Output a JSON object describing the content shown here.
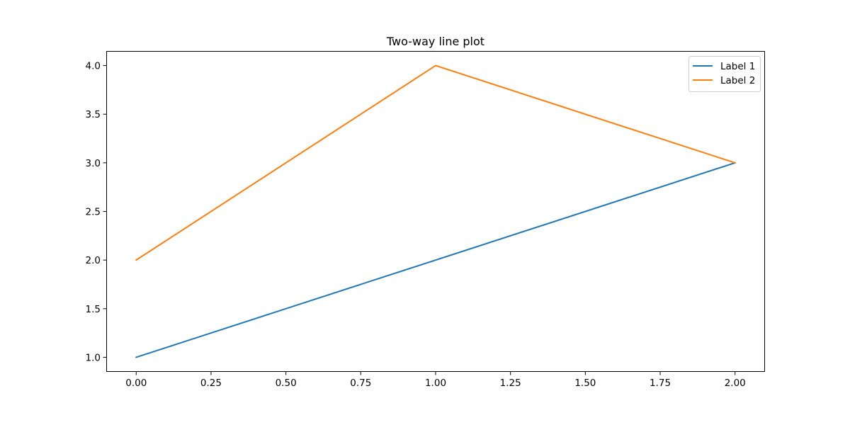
{
  "chart_data": {
    "type": "line",
    "title": "Two-way line plot",
    "xlabel": "",
    "ylabel": "",
    "xlim": [
      -0.1,
      2.1
    ],
    "ylim": [
      0.85,
      4.15
    ],
    "xticks": [
      0.0,
      0.25,
      0.5,
      0.75,
      1.0,
      1.25,
      1.5,
      1.75,
      2.0
    ],
    "xtick_labels": [
      "0.00",
      "0.25",
      "0.50",
      "0.75",
      "1.00",
      "1.25",
      "1.50",
      "1.75",
      "2.00"
    ],
    "yticks": [
      1.0,
      1.5,
      2.0,
      2.5,
      3.0,
      3.5,
      4.0
    ],
    "ytick_labels": [
      "1.0",
      "1.5",
      "2.0",
      "2.5",
      "3.0",
      "3.5",
      "4.0"
    ],
    "grid": false,
    "legend_position": "top-right",
    "series": [
      {
        "name": "Label 1",
        "x": [
          0,
          1,
          2
        ],
        "y": [
          1,
          2,
          3
        ],
        "color": "#1f77b4"
      },
      {
        "name": "Label 2",
        "x": [
          0,
          1,
          2
        ],
        "y": [
          2,
          4,
          3
        ],
        "color": "#ff7f0e"
      }
    ]
  }
}
